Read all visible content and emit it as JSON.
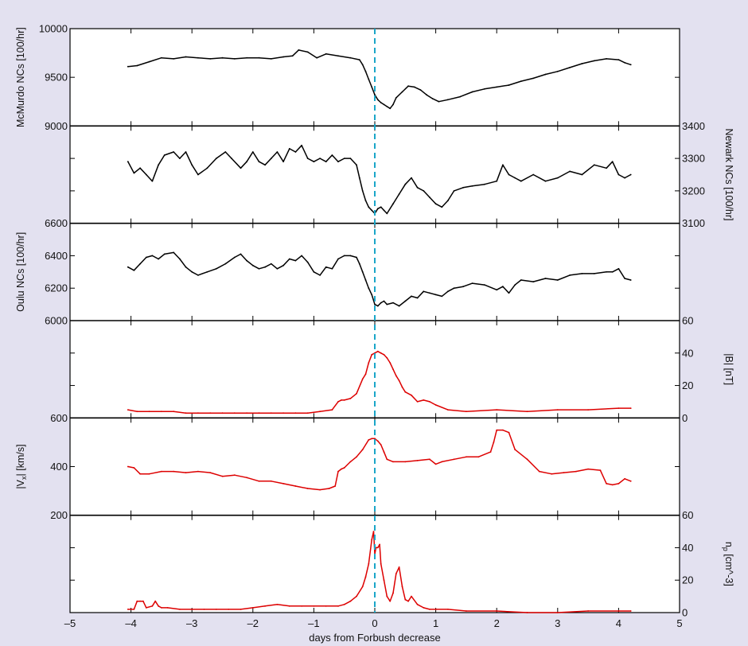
{
  "figure": {
    "xlabel": "days from Forbush decrease",
    "event_line_color": "#1aa6c8",
    "trace_colors": {
      "cosmic_ray": "#000000",
      "solar_wind": "#dd0000"
    },
    "background": "#e3e1f0"
  },
  "chart_data": [
    {
      "type": "line",
      "axis_side": "left",
      "ylabel": "McMurdo NCs [100/hr]",
      "ylim": [
        9000,
        10000
      ],
      "yticks": [
        9000,
        9500,
        10000
      ],
      "xlim": [
        -5,
        5
      ],
      "xticks": [
        -5,
        -4,
        -3,
        -2,
        -1,
        0,
        1,
        2,
        3,
        4,
        5
      ],
      "series": [
        {
          "color": "#000000",
          "x": [
            -4.05,
            -3.9,
            -3.7,
            -3.5,
            -3.3,
            -3.1,
            -2.9,
            -2.7,
            -2.5,
            -2.3,
            -2.1,
            -1.9,
            -1.7,
            -1.5,
            -1.35,
            -1.25,
            -1.1,
            -0.95,
            -0.8,
            -0.6,
            -0.4,
            -0.25,
            -0.2,
            -0.15,
            -0.1,
            -0.05,
            0.0,
            0.05,
            0.1,
            0.15,
            0.2,
            0.25,
            0.3,
            0.35,
            0.45,
            0.55,
            0.65,
            0.75,
            0.85,
            0.95,
            1.05,
            1.2,
            1.4,
            1.6,
            1.8,
            2.0,
            2.2,
            2.4,
            2.6,
            2.8,
            3.0,
            3.2,
            3.4,
            3.6,
            3.8,
            4.0,
            4.1,
            4.2
          ],
          "y": [
            9610,
            9620,
            9660,
            9700,
            9690,
            9710,
            9700,
            9690,
            9700,
            9690,
            9700,
            9700,
            9690,
            9710,
            9720,
            9780,
            9760,
            9700,
            9740,
            9720,
            9700,
            9680,
            9630,
            9560,
            9480,
            9400,
            9320,
            9270,
            9240,
            9220,
            9200,
            9180,
            9220,
            9290,
            9350,
            9410,
            9400,
            9370,
            9320,
            9280,
            9250,
            9270,
            9300,
            9350,
            9380,
            9400,
            9420,
            9460,
            9490,
            9530,
            9560,
            9600,
            9640,
            9670,
            9690,
            9680,
            9650,
            9630
          ]
        }
      ]
    },
    {
      "type": "line",
      "axis_side": "right",
      "ylabel": "Newark NCs [100/hr]",
      "ylim": [
        3100,
        3400
      ],
      "yticks": [
        3100,
        3200,
        3300,
        3400
      ],
      "xlim": [
        -5,
        5
      ],
      "xticks": [
        -5,
        -4,
        -3,
        -2,
        -1,
        0,
        1,
        2,
        3,
        4,
        5
      ],
      "series": [
        {
          "color": "#000000",
          "x": [
            -4.05,
            -3.95,
            -3.85,
            -3.75,
            -3.65,
            -3.55,
            -3.45,
            -3.3,
            -3.2,
            -3.1,
            -3.0,
            -2.9,
            -2.75,
            -2.6,
            -2.45,
            -2.35,
            -2.2,
            -2.1,
            -2.0,
            -1.9,
            -1.8,
            -1.7,
            -1.6,
            -1.5,
            -1.4,
            -1.3,
            -1.2,
            -1.1,
            -1.0,
            -0.9,
            -0.8,
            -0.7,
            -0.6,
            -0.5,
            -0.4,
            -0.3,
            -0.25,
            -0.2,
            -0.15,
            -0.1,
            -0.05,
            0.0,
            0.05,
            0.1,
            0.15,
            0.2,
            0.3,
            0.4,
            0.5,
            0.6,
            0.7,
            0.8,
            0.9,
            1.0,
            1.1,
            1.2,
            1.3,
            1.45,
            1.6,
            1.8,
            2.0,
            2.1,
            2.2,
            2.3,
            2.4,
            2.6,
            2.8,
            3.0,
            3.2,
            3.4,
            3.6,
            3.8,
            3.9,
            4.0,
            4.1,
            4.2
          ],
          "y": [
            3290,
            3255,
            3270,
            3250,
            3230,
            3280,
            3310,
            3320,
            3300,
            3320,
            3280,
            3250,
            3270,
            3300,
            3320,
            3300,
            3270,
            3290,
            3320,
            3290,
            3280,
            3300,
            3320,
            3290,
            3330,
            3320,
            3340,
            3300,
            3290,
            3300,
            3290,
            3310,
            3290,
            3300,
            3300,
            3280,
            3240,
            3200,
            3170,
            3150,
            3140,
            3130,
            3145,
            3150,
            3140,
            3130,
            3160,
            3190,
            3220,
            3240,
            3210,
            3200,
            3180,
            3160,
            3150,
            3170,
            3200,
            3210,
            3215,
            3220,
            3230,
            3280,
            3250,
            3240,
            3230,
            3250,
            3230,
            3240,
            3260,
            3250,
            3280,
            3270,
            3290,
            3250,
            3240,
            3250
          ]
        }
      ]
    },
    {
      "type": "line",
      "axis_side": "left",
      "ylabel": "Oulu NCs [100/hr]",
      "ylim": [
        6000,
        6600
      ],
      "yticks": [
        6000,
        6200,
        6400,
        6600
      ],
      "xlim": [
        -5,
        5
      ],
      "xticks": [
        -5,
        -4,
        -3,
        -2,
        -1,
        0,
        1,
        2,
        3,
        4,
        5
      ],
      "series": [
        {
          "color": "#000000",
          "x": [
            -4.05,
            -3.95,
            -3.85,
            -3.75,
            -3.65,
            -3.55,
            -3.45,
            -3.3,
            -3.2,
            -3.1,
            -3.0,
            -2.9,
            -2.75,
            -2.6,
            -2.45,
            -2.3,
            -2.2,
            -2.1,
            -2.0,
            -1.9,
            -1.8,
            -1.7,
            -1.6,
            -1.5,
            -1.4,
            -1.3,
            -1.2,
            -1.1,
            -1.0,
            -0.9,
            -0.8,
            -0.7,
            -0.6,
            -0.5,
            -0.4,
            -0.3,
            -0.25,
            -0.2,
            -0.15,
            -0.1,
            -0.05,
            0.0,
            0.05,
            0.1,
            0.15,
            0.2,
            0.3,
            0.4,
            0.5,
            0.6,
            0.7,
            0.8,
            0.9,
            1.0,
            1.1,
            1.2,
            1.3,
            1.45,
            1.6,
            1.8,
            2.0,
            2.1,
            2.2,
            2.3,
            2.4,
            2.6,
            2.8,
            3.0,
            3.2,
            3.4,
            3.6,
            3.8,
            3.9,
            4.0,
            4.1,
            4.2
          ],
          "y": [
            6330,
            6310,
            6350,
            6390,
            6400,
            6380,
            6410,
            6420,
            6380,
            6330,
            6300,
            6280,
            6300,
            6320,
            6350,
            6390,
            6410,
            6370,
            6340,
            6320,
            6330,
            6350,
            6320,
            6340,
            6380,
            6370,
            6400,
            6360,
            6300,
            6280,
            6330,
            6320,
            6380,
            6400,
            6400,
            6390,
            6350,
            6300,
            6250,
            6200,
            6160,
            6100,
            6090,
            6110,
            6120,
            6100,
            6110,
            6090,
            6120,
            6150,
            6140,
            6180,
            6170,
            6160,
            6150,
            6180,
            6200,
            6210,
            6230,
            6220,
            6190,
            6210,
            6170,
            6220,
            6250,
            6240,
            6260,
            6250,
            6280,
            6290,
            6290,
            6300,
            6300,
            6320,
            6260,
            6250
          ]
        }
      ]
    },
    {
      "type": "line",
      "axis_side": "right",
      "ylabel": "|B| [nT]",
      "ylim": [
        0,
        60
      ],
      "yticks": [
        0,
        20,
        40,
        60
      ],
      "xlim": [
        -5,
        5
      ],
      "xticks": [
        -5,
        -4,
        -3,
        -2,
        -1,
        0,
        1,
        2,
        3,
        4,
        5
      ],
      "series": [
        {
          "color": "#dd0000",
          "x": [
            -4.05,
            -3.9,
            -3.7,
            -3.5,
            -3.3,
            -3.1,
            -2.9,
            -2.7,
            -2.5,
            -2.3,
            -2.1,
            -1.9,
            -1.7,
            -1.5,
            -1.3,
            -1.1,
            -0.9,
            -0.7,
            -0.6,
            -0.55,
            -0.5,
            -0.4,
            -0.3,
            -0.2,
            -0.15,
            -0.1,
            -0.05,
            0.0,
            0.05,
            0.1,
            0.15,
            0.2,
            0.25,
            0.3,
            0.35,
            0.4,
            0.45,
            0.5,
            0.6,
            0.7,
            0.8,
            0.9,
            1.0,
            1.2,
            1.5,
            2.0,
            2.5,
            3.0,
            3.5,
            4.0,
            4.2
          ],
          "y": [
            5,
            4,
            4,
            4,
            4,
            3,
            3,
            3,
            3,
            3,
            3,
            3,
            3,
            3,
            3,
            3,
            4,
            5,
            10,
            11,
            11,
            12,
            15,
            24,
            27,
            34,
            39,
            40,
            41,
            40,
            39,
            37,
            34,
            30,
            26,
            23,
            19,
            16,
            14,
            10,
            11,
            10,
            8,
            5,
            4,
            5,
            4,
            5,
            5,
            6,
            6
          ]
        }
      ]
    },
    {
      "type": "line",
      "axis_side": "left",
      "ylabel": "|V_x| [km/s]",
      "ylim": [
        200,
        600
      ],
      "yticks": [
        200,
        400,
        600
      ],
      "xlim": [
        -5,
        5
      ],
      "xticks": [
        -5,
        -4,
        -3,
        -2,
        -1,
        0,
        1,
        2,
        3,
        4,
        5
      ],
      "series": [
        {
          "color": "#dd0000",
          "x": [
            -4.05,
            -3.95,
            -3.85,
            -3.7,
            -3.5,
            -3.3,
            -3.1,
            -2.9,
            -2.7,
            -2.5,
            -2.3,
            -2.1,
            -1.9,
            -1.7,
            -1.5,
            -1.3,
            -1.1,
            -0.9,
            -0.75,
            -0.65,
            -0.6,
            -0.55,
            -0.5,
            -0.4,
            -0.3,
            -0.2,
            -0.1,
            -0.05,
            0.0,
            0.05,
            0.1,
            0.15,
            0.2,
            0.3,
            0.5,
            0.7,
            0.9,
            1.0,
            1.1,
            1.3,
            1.5,
            1.7,
            1.9,
            1.95,
            2.0,
            2.1,
            2.2,
            2.3,
            2.5,
            2.7,
            2.9,
            3.1,
            3.3,
            3.5,
            3.7,
            3.8,
            3.9,
            4.0,
            4.1,
            4.2
          ],
          "y": [
            400,
            395,
            370,
            370,
            380,
            380,
            375,
            380,
            375,
            360,
            365,
            355,
            340,
            340,
            330,
            320,
            310,
            305,
            310,
            320,
            380,
            390,
            395,
            420,
            440,
            470,
            510,
            515,
            515,
            505,
            490,
            460,
            430,
            420,
            420,
            425,
            430,
            410,
            420,
            430,
            440,
            440,
            460,
            500,
            550,
            550,
            540,
            470,
            430,
            380,
            370,
            375,
            380,
            390,
            385,
            330,
            325,
            330,
            350,
            340
          ]
        }
      ]
    },
    {
      "type": "line",
      "axis_side": "right",
      "ylabel": "n_p [cm^-3]",
      "ylim": [
        0,
        60
      ],
      "yticks": [
        0,
        20,
        40,
        60
      ],
      "xlim": [
        -5,
        5
      ],
      "xticks": [
        -5,
        -4,
        -3,
        -2,
        -1,
        0,
        1,
        2,
        3,
        4,
        5
      ],
      "series": [
        {
          "color": "#dd0000",
          "x": [
            -4.05,
            -3.95,
            -3.9,
            -3.85,
            -3.8,
            -3.75,
            -3.65,
            -3.6,
            -3.55,
            -3.5,
            -3.4,
            -3.2,
            -3.0,
            -2.8,
            -2.6,
            -2.4,
            -2.2,
            -2.0,
            -1.8,
            -1.6,
            -1.4,
            -1.2,
            -1.0,
            -0.8,
            -0.6,
            -0.5,
            -0.4,
            -0.3,
            -0.2,
            -0.15,
            -0.1,
            -0.05,
            -0.02,
            0.0,
            0.02,
            0.05,
            0.08,
            0.1,
            0.15,
            0.2,
            0.25,
            0.3,
            0.35,
            0.4,
            0.45,
            0.5,
            0.55,
            0.6,
            0.7,
            0.8,
            0.9,
            1.0,
            1.2,
            1.5,
            2.0,
            2.5,
            3.0,
            3.5,
            4.0,
            4.2
          ],
          "y": [
            2,
            2,
            7,
            7,
            7,
            3,
            4,
            7,
            4,
            3,
            3,
            2,
            2,
            2,
            2,
            2,
            2,
            3,
            4,
            5,
            4,
            4,
            4,
            4,
            4,
            5,
            7,
            10,
            16,
            22,
            30,
            45,
            50,
            36,
            40,
            40,
            42,
            30,
            20,
            10,
            7,
            12,
            24,
            28,
            16,
            8,
            7,
            10,
            5,
            3,
            2,
            2,
            2,
            1,
            1,
            0,
            0,
            1,
            1,
            1
          ]
        }
      ]
    }
  ]
}
